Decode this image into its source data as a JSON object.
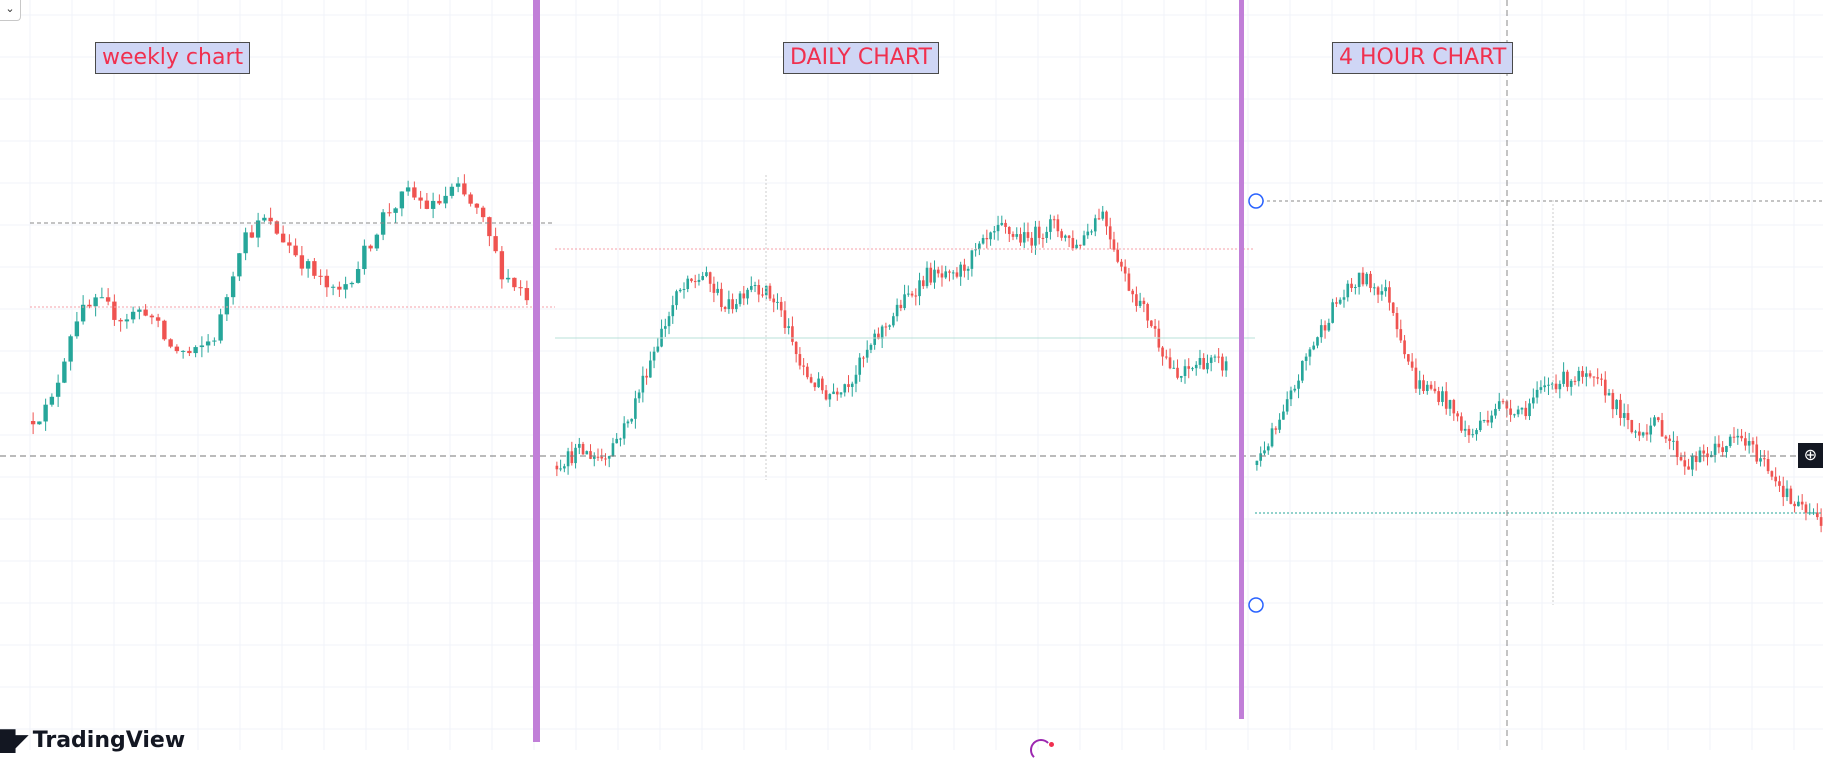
{
  "labels": {
    "weekly": "weekly chart",
    "daily": "DAILY CHART",
    "four_hour": "4 HOUR CHART"
  },
  "brand": {
    "name": "TradingView"
  },
  "icons": {
    "corner": "chevron-down-icon",
    "crosshair_add": "plus-circle-icon",
    "loading": "loading-spinner-icon"
  },
  "colors": {
    "up": "#26a69a",
    "down": "#ef5350",
    "divider": "#c17fd8",
    "label_fill": "#cfd6f5",
    "label_text": "#f0304f",
    "grid": "#f0f3fa",
    "handle": "#2962ff"
  },
  "chart_data": [
    {
      "type": "candlestick",
      "name": "weekly chart",
      "candle_count": 80,
      "path": [
        0.2,
        0.25,
        0.55,
        0.6,
        0.55,
        0.58,
        0.45,
        0.42,
        0.5,
        0.82,
        0.88,
        0.8,
        0.7,
        0.62,
        0.74,
        0.9,
        0.97,
        0.92,
        0.99,
        0.9,
        0.7,
        0.63
      ],
      "grid": true
    },
    {
      "type": "candlestick",
      "name": "DAILY CHART",
      "candle_count": 180,
      "path": [
        0.05,
        0.1,
        0.08,
        0.2,
        0.45,
        0.65,
        0.72,
        0.6,
        0.7,
        0.62,
        0.38,
        0.3,
        0.36,
        0.5,
        0.62,
        0.72,
        0.7,
        0.8,
        0.88,
        0.84,
        0.9,
        0.82,
        0.95,
        0.7,
        0.55,
        0.35,
        0.42,
        0.4
      ],
      "grid": true
    },
    {
      "type": "candlestick",
      "name": "4 HOUR CHART",
      "candle_count": 150,
      "path": [
        0.2,
        0.35,
        0.6,
        0.78,
        0.88,
        0.82,
        0.5,
        0.45,
        0.3,
        0.42,
        0.4,
        0.5,
        0.52,
        0.48,
        0.32,
        0.35,
        0.2,
        0.25,
        0.3,
        0.2,
        0.05,
        0.0
      ],
      "grid": true
    }
  ]
}
